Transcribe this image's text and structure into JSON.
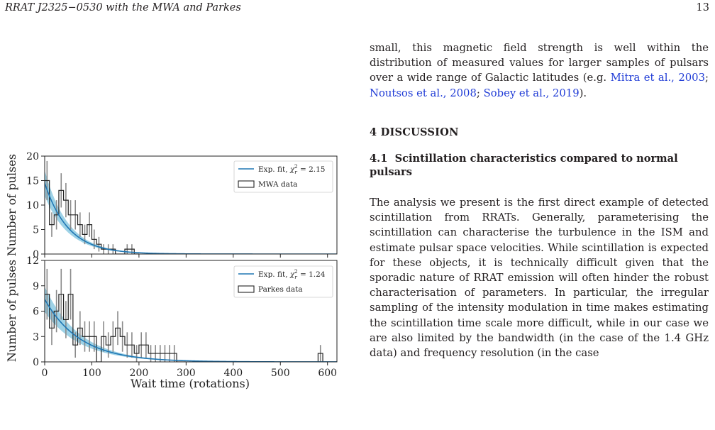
{
  "header": {
    "running_title": "RRAT J2325−0530 with the MWA and Parkes",
    "page_number": "13"
  },
  "text": {
    "para1_lead": "small, this magnetic field strength is well within the distribution of measured values for larger samples of pulsars over a wide range of Galactic latitudes (e.g. ",
    "cite1": "Mitra et al., 2003",
    "sep1": "; ",
    "cite2": "Noutsos et al., 2008",
    "sep2": "; ",
    "cite3": "Sobey et al., 2019",
    "para1_tail": ").",
    "section_heading": "4 DISCUSSION",
    "subsection_number": "4.1",
    "subsection_title": "Scintillation characteristics compared to normal pulsars",
    "para2": "The analysis we present is the first direct example of detected scintillation from RRATs. Generally, parameterising the scintillation can characterise the turbulence in the ISM and estimate pulsar space velocities. While scintillation is expected for these objects, it is technically difficult given that the sporadic nature of RRAT emission will often hinder the robust characterisation of parameters. In particular, the irregular sampling of the intensity modulation in time makes estimating the scintillation time scale more difficult, while in our case we are also limited by the bandwidth (in the case of the 1.4 GHz data) and frequency resolution (in the case"
  },
  "chart_data": [
    {
      "type": "bar",
      "panel": "top",
      "xlabel": "",
      "ylabel": "Number of pulses",
      "xlim": [
        0,
        620
      ],
      "ylim": [
        0,
        20
      ],
      "xticks": [
        0,
        100,
        200,
        300,
        400,
        500,
        600
      ],
      "yticks": [
        0,
        5,
        10,
        15,
        20
      ],
      "bin_width": 10,
      "histogram": {
        "name": "MWA data",
        "bin_starts": [
          0,
          10,
          20,
          30,
          40,
          50,
          60,
          70,
          80,
          90,
          100,
          110,
          120,
          130,
          140,
          150,
          160,
          170,
          180,
          190
        ],
        "counts": [
          15,
          6,
          8,
          13,
          11,
          8,
          8,
          6,
          4,
          6,
          3,
          2,
          1,
          1,
          1,
          0,
          0,
          1,
          1,
          0
        ],
        "errors": [
          4,
          2.5,
          3,
          3.5,
          3.5,
          3,
          3,
          2.5,
          2,
          2.5,
          2,
          1.5,
          1,
          1,
          1,
          0,
          0,
          1,
          1,
          0
        ]
      },
      "fit": {
        "name": "Exp. fit, ",
        "chi_label": "χ",
        "chi_sub": "r",
        "chi_sup": "2",
        "chi_value": " = 2.15",
        "amplitude": 14.5,
        "scale": 50,
        "band_fraction": 0.18
      },
      "legend_position": "top-right",
      "colors": {
        "fit": "#1f77b4",
        "band": "#7ec3de",
        "hist": "#222222",
        "err": "#8a8a8a"
      }
    },
    {
      "type": "bar",
      "panel": "bottom",
      "xlabel": "Wait time (rotations)",
      "ylabel": "Number of pulses",
      "xlim": [
        0,
        620
      ],
      "ylim": [
        0,
        12
      ],
      "xticks": [
        0,
        100,
        200,
        300,
        400,
        500,
        600
      ],
      "yticks": [
        0,
        3,
        6,
        9,
        12
      ],
      "bin_width": 10,
      "histogram": {
        "name": "Parkes data",
        "bin_starts": [
          0,
          10,
          20,
          30,
          40,
          50,
          60,
          70,
          80,
          90,
          100,
          110,
          120,
          130,
          140,
          150,
          160,
          170,
          180,
          190,
          200,
          210,
          220,
          230,
          240,
          250,
          260,
          270,
          280,
          290,
          580
        ],
        "counts": [
          8,
          4,
          6,
          8,
          5,
          8,
          2,
          4,
          3,
          3,
          3,
          0,
          3,
          2,
          3,
          4,
          3,
          2,
          2,
          1,
          2,
          2,
          1,
          1,
          1,
          1,
          1,
          1,
          0,
          0,
          1
        ],
        "errors": [
          3,
          2,
          2.5,
          3,
          2.2,
          3,
          1.5,
          2,
          1.8,
          1.8,
          1.8,
          0,
          1.8,
          1.5,
          1.8,
          2,
          1.8,
          1.5,
          1.5,
          1,
          1.5,
          1.5,
          1,
          1,
          1,
          1,
          1,
          1,
          0,
          0,
          1
        ]
      },
      "fit": {
        "name": "Exp. fit, ",
        "chi_label": "χ",
        "chi_sub": "r",
        "chi_sup": "2",
        "chi_value": " = 1.24",
        "amplitude": 7.4,
        "scale": 75,
        "band_fraction": 0.2
      },
      "legend_position": "top-right",
      "colors": {
        "fit": "#1f77b4",
        "band": "#7ec3de",
        "hist": "#222222",
        "err": "#8a8a8a"
      }
    }
  ]
}
